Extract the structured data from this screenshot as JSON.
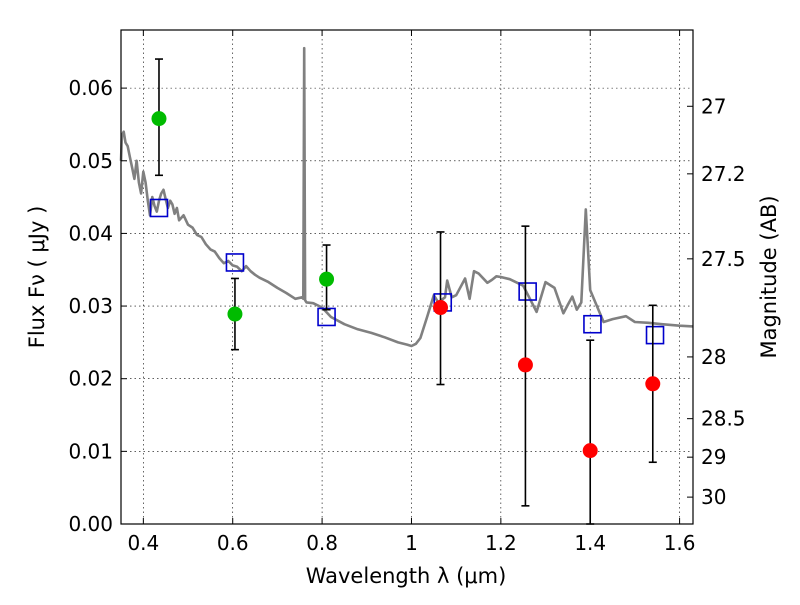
{
  "chart_data": {
    "type": "scatter",
    "title": "",
    "xlabel": "Wavelength  λ (μm)",
    "ylabel": "Flux  Fν  ( μJy )",
    "y2label": "Magnitude (AB)",
    "xlim": [
      0.35,
      1.63
    ],
    "ylim": [
      0.0,
      0.068
    ],
    "grid": true,
    "xticks": [
      0.4,
      0.6,
      0.8,
      1.0,
      1.2,
      1.4,
      1.6
    ],
    "xtick_labels": [
      "0.4",
      "0.6",
      "0.8",
      "1",
      "1.2",
      "1.4",
      "1.6"
    ],
    "yticks": [
      0.0,
      0.01,
      0.02,
      0.03,
      0.04,
      0.05,
      0.06
    ],
    "ytick_labels": [
      "0.00",
      "0.01",
      "0.02",
      "0.03",
      "0.04",
      "0.05",
      "0.06"
    ],
    "y2ticks": [
      {
        "label": "27",
        "flux": 0.0575
      },
      {
        "label": "27.2",
        "flux": 0.0482
      },
      {
        "label": "27.5",
        "flux": 0.0365
      },
      {
        "label": "28",
        "flux": 0.023
      },
      {
        "label": "28.5",
        "flux": 0.0145
      },
      {
        "label": "29",
        "flux": 0.0092
      },
      {
        "label": "30",
        "flux": 0.0037
      }
    ],
    "series": [
      {
        "name": "",
        "kind": "line",
        "color": "#808080",
        "x": [
          0.35,
          0.352,
          0.356,
          0.36,
          0.365,
          0.37,
          0.375,
          0.38,
          0.385,
          0.39,
          0.395,
          0.4,
          0.405,
          0.41,
          0.415,
          0.42,
          0.425,
          0.43,
          0.435,
          0.44,
          0.445,
          0.45,
          0.455,
          0.46,
          0.465,
          0.47,
          0.475,
          0.48,
          0.49,
          0.5,
          0.51,
          0.52,
          0.53,
          0.54,
          0.55,
          0.56,
          0.57,
          0.58,
          0.59,
          0.6,
          0.61,
          0.62,
          0.63,
          0.64,
          0.65,
          0.66,
          0.68,
          0.7,
          0.72,
          0.74,
          0.755,
          0.758,
          0.76,
          0.762,
          0.765,
          0.78,
          0.8,
          0.82,
          0.85,
          0.88,
          0.91,
          0.94,
          0.97,
          0.99,
          1.0,
          1.01,
          1.02,
          1.035,
          1.05,
          1.06,
          1.075,
          1.08,
          1.09,
          1.1,
          1.12,
          1.13,
          1.14,
          1.15,
          1.17,
          1.18,
          1.19,
          1.2,
          1.22,
          1.25,
          1.28,
          1.3,
          1.32,
          1.34,
          1.35,
          1.36,
          1.37,
          1.38,
          1.39,
          1.4,
          1.43,
          1.45,
          1.48,
          1.5,
          1.53,
          1.56,
          1.6,
          1.63
        ],
        "y": [
          0.05,
          0.0535,
          0.054,
          0.0525,
          0.052,
          0.0505,
          0.049,
          0.0475,
          0.05,
          0.047,
          0.0455,
          0.0485,
          0.047,
          0.0445,
          0.0425,
          0.045,
          0.0438,
          0.043,
          0.0445,
          0.0455,
          0.046,
          0.0447,
          0.0435,
          0.0445,
          0.044,
          0.0427,
          0.0435,
          0.0418,
          0.0425,
          0.0412,
          0.0408,
          0.0398,
          0.0395,
          0.0385,
          0.0378,
          0.0375,
          0.0366,
          0.0359,
          0.0362,
          0.0356,
          0.0354,
          0.0348,
          0.0355,
          0.0348,
          0.0343,
          0.0339,
          0.0333,
          0.0325,
          0.0318,
          0.031,
          0.0312,
          0.031,
          0.0655,
          0.0308,
          0.0305,
          0.0304,
          0.0298,
          0.0285,
          0.0275,
          0.0268,
          0.0263,
          0.0257,
          0.025,
          0.0247,
          0.0245,
          0.0248,
          0.0256,
          0.0285,
          0.0315,
          0.0305,
          0.0312,
          0.0335,
          0.0312,
          0.0315,
          0.0338,
          0.031,
          0.0348,
          0.0345,
          0.0332,
          0.0336,
          0.0341,
          0.034,
          0.0337,
          0.0328,
          0.0292,
          0.0333,
          0.0325,
          0.029,
          0.0302,
          0.0313,
          0.0295,
          0.0305,
          0.0433,
          0.0322,
          0.0278,
          0.0282,
          0.0286,
          0.0278,
          0.0277,
          0.0275,
          0.0273,
          0.0272
        ]
      },
      {
        "name": "",
        "kind": "scatter",
        "marker": "square-open",
        "color": "#0000cc",
        "x": [
          0.435,
          0.605,
          0.81,
          1.07,
          1.26,
          1.405,
          1.545
        ],
        "y": [
          0.0435,
          0.036,
          0.0285,
          0.0305,
          0.032,
          0.0275,
          0.026
        ]
      },
      {
        "name": "",
        "kind": "scatter",
        "marker": "circle",
        "color": "#00bb00",
        "x": [
          0.435,
          0.605,
          0.81
        ],
        "y": [
          0.0558,
          0.0289,
          0.0337
        ],
        "yerr_low": [
          0.048,
          0.024,
          0.0295
        ],
        "yerr_high": [
          0.064,
          0.0338,
          0.0384
        ]
      },
      {
        "name": "",
        "kind": "scatter",
        "marker": "circle",
        "color": "#ff0000",
        "x": [
          1.065,
          1.255,
          1.4,
          1.54
        ],
        "y": [
          0.0298,
          0.0219,
          0.0101,
          0.0193
        ],
        "yerr_low": [
          0.0192,
          0.0025,
          0.0,
          0.0085
        ],
        "yerr_high": [
          0.0402,
          0.041,
          0.0253,
          0.0301
        ]
      }
    ]
  }
}
